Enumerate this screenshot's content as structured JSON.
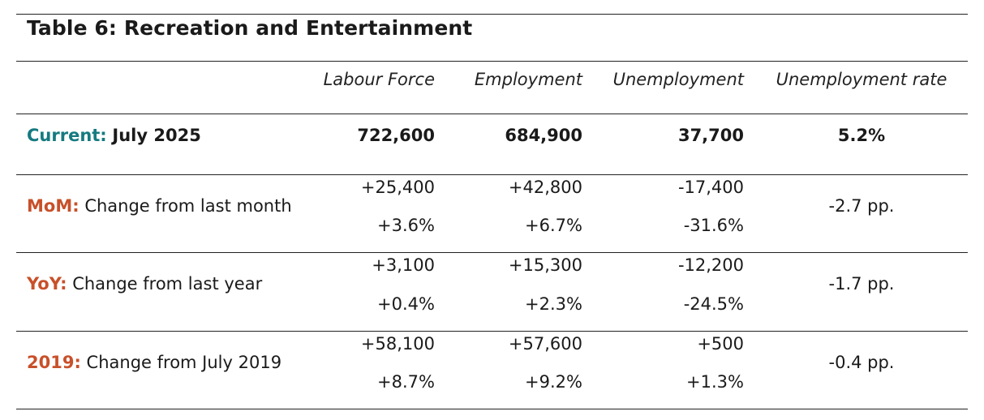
{
  "title": "Table 6: Recreation and Entertainment",
  "columns": [
    "Labour Force",
    "Employment",
    "Unemployment",
    "Unemployment rate"
  ],
  "current": {
    "prefix": "Current:",
    "label": "July 2025",
    "values": [
      "722,600",
      "684,900",
      "37,700",
      "5.2%"
    ]
  },
  "rows": [
    {
      "prefix": "MoM:",
      "label": "Change from last month",
      "abs": [
        "+25,400",
        "+42,800",
        "-17,400"
      ],
      "pct": [
        "+3.6%",
        "+6.7%",
        "-31.6%"
      ],
      "rate": "-2.7 pp."
    },
    {
      "prefix": "YoY:",
      "label": "Change from last year",
      "abs": [
        "+3,100",
        "+15,300",
        "-12,200"
      ],
      "pct": [
        "+0.4%",
        "+2.3%",
        "-24.5%"
      ],
      "rate": "-1.7 pp."
    },
    {
      "prefix": "2019:",
      "label": "Change from July 2019",
      "abs": [
        "+58,100",
        "+57,600",
        "+500"
      ],
      "pct": [
        "+8.7%",
        "+9.2%",
        "+1.3%"
      ],
      "rate": "-0.4 pp."
    }
  ],
  "colors": {
    "current_prefix": "#157a80",
    "change_prefix": "#c8502a"
  }
}
